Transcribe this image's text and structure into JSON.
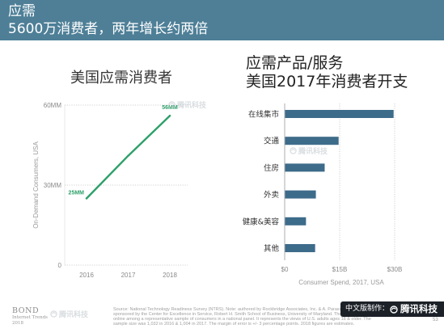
{
  "header": {
    "title": "应需",
    "subtitle": "5600万消费者，两年增长约两倍",
    "background_color": "#4e7f97",
    "text_color": "#ffffff"
  },
  "chart_data": [
    {
      "type": "line",
      "title": "美国应需消费者",
      "x": [
        "2016",
        "2017",
        "2018"
      ],
      "series": [
        {
          "values": [
            25,
            41,
            56
          ],
          "color": "#2ea06a",
          "data_labels": [
            "25MM",
            null,
            "56MM"
          ]
        }
      ],
      "ylabel": "On-Demand Consumers, USA",
      "ylim": [
        0,
        60
      ],
      "yticks": [
        {
          "value": 60,
          "label": "60MM"
        },
        {
          "value": 30,
          "label": "30MM"
        },
        {
          "value": 0,
          "label": "0"
        }
      ],
      "grid": true
    },
    {
      "type": "bar",
      "orientation": "horizontal",
      "title": "应需产品/服务",
      "subtitle": "美国2017年消费者开支",
      "categories": [
        "在线集市",
        "交通",
        "住房",
        "外卖",
        "健康&美容",
        "其他"
      ],
      "values": [
        29.6,
        14.6,
        10.8,
        8.4,
        5.7,
        8.2
      ],
      "color": "#3d6b8a",
      "xlabel": "Consumer Spend, 2017, USA",
      "xlim": [
        0,
        30
      ],
      "xticks": [
        {
          "value": 0,
          "label": "$0"
        },
        {
          "value": 15,
          "label": "$15B"
        },
        {
          "value": 30,
          "label": "$30B"
        }
      ],
      "grid": true
    }
  ],
  "watermarks": [
    "腾讯科技",
    "腾讯科技",
    "腾讯科技"
  ],
  "footer": {
    "brand": "BOND",
    "brand_line2": "Internet Trends",
    "brand_year": "2018",
    "source_lines": [
      "Source: National Technology Readiness Survey (NTRS). Note: authored by Rockbridge Associates, Inc. & A. Parasuraman,",
      "sponsored by the Center for Excellence in Service, Robert H. Smith School of Business, University of Maryland. The",
      "online among a representative sample of consumers in a national panel. It represents the views of U.S. adults ages 18 & older. The",
      "sample size was 1,032 in 2016 & 1,004 in 2017. The margin of error is +/- 3 percentage points. 2018 figures are estimates."
    ],
    "page_number": "53"
  },
  "badge": {
    "label": "中文版制作：",
    "logo_icon": "tencent-logo-icon",
    "name": "腾讯科技",
    "background_color": "#1c2128"
  }
}
